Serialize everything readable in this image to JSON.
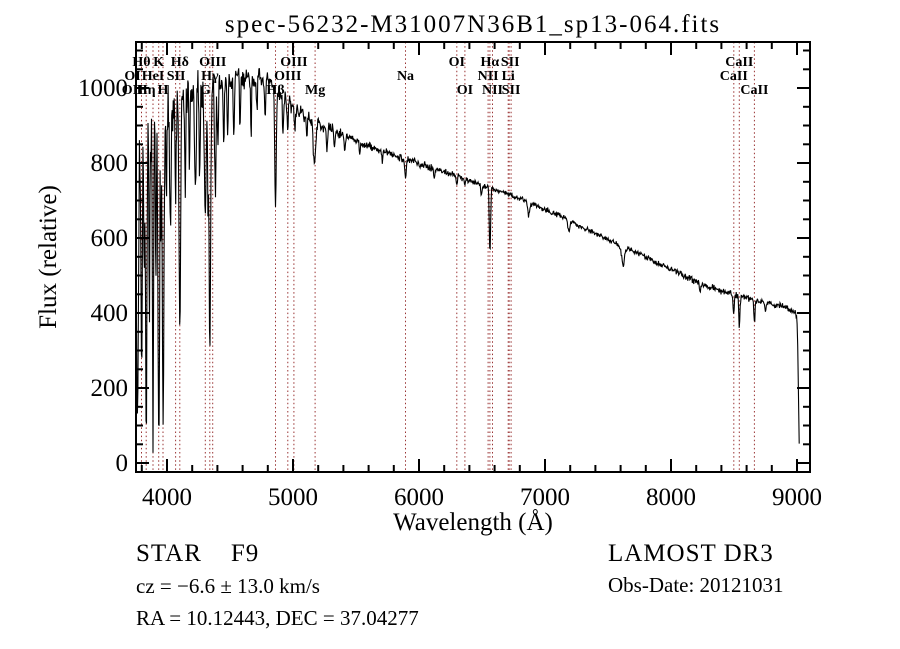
{
  "title": "spec-56232-M31007N36B1_sp13-064.fits",
  "footer": {
    "class_label": "STAR    F9",
    "cz": "cz = −6.6 ± 13.0 km/s",
    "radec": "RA =  10.12443, DEC =  37.04277",
    "survey": "LAMOST DR3",
    "obs_date": "Obs-Date: 20121031"
  },
  "chart_data": {
    "type": "line",
    "title": "spec-56232-M31007N36B1_sp13-064.fits",
    "xlabel": "Wavelength (Å)",
    "ylabel": "Flux (relative)",
    "x_ticks": [
      4000,
      5000,
      6000,
      7000,
      8000,
      9000
    ],
    "y_ticks": [
      0,
      200,
      400,
      600,
      800,
      1000
    ],
    "x_minor_step": 200,
    "y_minor_step": 50,
    "xlim": [
      3754,
      9103
    ],
    "ylim": [
      -24,
      1123
    ],
    "grid": false,
    "legend": "none",
    "line_color": "#000000",
    "marker_color": "#993333",
    "marker_lines": [
      3798,
      3835,
      3889,
      3934,
      3968,
      4068,
      4102,
      4304,
      4340,
      4363,
      4861,
      4959,
      5007,
      5175,
      5893,
      6300,
      6364,
      6548,
      6563,
      6583,
      6708,
      6716,
      6731,
      8498,
      8542,
      8662
    ],
    "marker_labels": [
      {
        "label": "Hθ",
        "wavelength": 3798,
        "row": 1
      },
      {
        "label": "K",
        "wavelength": 3934,
        "row": 1
      },
      {
        "label": "Hδ",
        "wavelength": 4102,
        "row": 1
      },
      {
        "label": "OIII",
        "wavelength": 4363,
        "row": 1
      },
      {
        "label": "OIII",
        "wavelength": 5007,
        "row": 1
      },
      {
        "label": "OI",
        "wavelength": 6300,
        "row": 1
      },
      {
        "label": "Hα",
        "wavelength": 6563,
        "row": 1
      },
      {
        "label": "SII",
        "wavelength": 6724,
        "row": 1
      },
      {
        "label": "CaII",
        "wavelength": 8542,
        "row": 1
      },
      {
        "label": "OI",
        "wavelength": 3727,
        "row": 2
      },
      {
        "label": "HeI",
        "wavelength": 3889,
        "row": 2
      },
      {
        "label": "SII",
        "wavelength": 4072,
        "row": 2
      },
      {
        "label": "Hγ",
        "wavelength": 4340,
        "row": 2
      },
      {
        "label": "OIII",
        "wavelength": 4959,
        "row": 2
      },
      {
        "label": "Na",
        "wavelength": 5893,
        "row": 2
      },
      {
        "label": "NII",
        "wavelength": 6548,
        "row": 2
      },
      {
        "label": "Li",
        "wavelength": 6708,
        "row": 2
      },
      {
        "label": "CaII",
        "wavelength": 8498,
        "row": 2
      },
      {
        "label": "OII",
        "wavelength": 3727,
        "row": 3
      },
      {
        "label": "Hη",
        "wavelength": 3835,
        "row": 3
      },
      {
        "label": "H",
        "wavelength": 3968,
        "row": 3
      },
      {
        "label": "G",
        "wavelength": 4304,
        "row": 3
      },
      {
        "label": "Hβ",
        "wavelength": 4861,
        "row": 3
      },
      {
        "label": "Mg",
        "wavelength": 5175,
        "row": 3
      },
      {
        "label": "OI",
        "wavelength": 6364,
        "row": 3
      },
      {
        "label": "NII",
        "wavelength": 6583,
        "row": 3
      },
      {
        "label": "SII",
        "wavelength": 6731,
        "row": 3
      },
      {
        "label": "CaII",
        "wavelength": 8662,
        "row": 3
      }
    ],
    "continuum_points": [
      [
        3754,
        830
      ],
      [
        3800,
        865
      ],
      [
        3900,
        895
      ],
      [
        4000,
        925
      ],
      [
        4150,
        965
      ],
      [
        4300,
        992
      ],
      [
        4450,
        1012
      ],
      [
        4600,
        1028
      ],
      [
        4700,
        1030
      ],
      [
        4800,
        1015
      ],
      [
        4900,
        985
      ],
      [
        5000,
        948
      ],
      [
        5100,
        925
      ],
      [
        5200,
        906
      ],
      [
        5350,
        882
      ],
      [
        5500,
        858
      ],
      [
        5700,
        832
      ],
      [
        5900,
        810
      ],
      [
        6100,
        788
      ],
      [
        6300,
        766
      ],
      [
        6500,
        741
      ],
      [
        6700,
        718
      ],
      [
        6900,
        692
      ],
      [
        7100,
        662
      ],
      [
        7300,
        628
      ],
      [
        7500,
        598
      ],
      [
        7610,
        574
      ],
      [
        7700,
        566
      ],
      [
        7900,
        532
      ],
      [
        8100,
        500
      ],
      [
        8300,
        470
      ],
      [
        8500,
        450
      ],
      [
        8700,
        433
      ],
      [
        8900,
        416
      ],
      [
        8990,
        402
      ],
      [
        9000,
        385
      ],
      [
        9006,
        300
      ],
      [
        9012,
        160
      ],
      [
        9018,
        30
      ]
    ],
    "absorption_dips": [
      [
        3762,
        700,
        4
      ],
      [
        3771,
        520,
        4
      ],
      [
        3798,
        600,
        5
      ],
      [
        3820,
        430,
        4
      ],
      [
        3835,
        760,
        5
      ],
      [
        3860,
        430,
        4
      ],
      [
        3889,
        820,
        5
      ],
      [
        3912,
        390,
        4
      ],
      [
        3934,
        850,
        6
      ],
      [
        3952,
        310,
        4
      ],
      [
        3969,
        870,
        6
      ],
      [
        3995,
        290,
        4
      ],
      [
        4026,
        260,
        4
      ],
      [
        4068,
        250,
        4
      ],
      [
        4102,
        620,
        6
      ],
      [
        4144,
        240,
        4
      ],
      [
        4178,
        180,
        4
      ],
      [
        4226,
        300,
        5
      ],
      [
        4260,
        210,
        4
      ],
      [
        4304,
        330,
        7
      ],
      [
        4325,
        260,
        4
      ],
      [
        4340,
        690,
        6
      ],
      [
        4383,
        290,
        5
      ],
      [
        4405,
        210,
        4
      ],
      [
        4450,
        170,
        4
      ],
      [
        4481,
        150,
        4
      ],
      [
        4530,
        150,
        4
      ],
      [
        4580,
        130,
        4
      ],
      [
        4668,
        140,
        4
      ],
      [
        4715,
        110,
        4
      ],
      [
        4780,
        110,
        4
      ],
      [
        4861,
        315,
        6
      ],
      [
        4920,
        95,
        4
      ],
      [
        4957,
        75,
        4
      ],
      [
        5015,
        65,
        4
      ],
      [
        5110,
        60,
        4
      ],
      [
        5170,
        120,
        9
      ],
      [
        5270,
        70,
        5
      ],
      [
        5330,
        45,
        4
      ],
      [
        5410,
        40,
        4
      ],
      [
        5530,
        35,
        4
      ],
      [
        5710,
        30,
        4
      ],
      [
        5893,
        52,
        6
      ],
      [
        6122,
        25,
        5
      ],
      [
        6300,
        30,
        4
      ],
      [
        6364,
        18,
        4
      ],
      [
        6495,
        28,
        4
      ],
      [
        6563,
        176,
        5
      ],
      [
        6870,
        35,
        8
      ],
      [
        7190,
        25,
        8
      ],
      [
        7620,
        46,
        10
      ],
      [
        8230,
        20,
        5
      ],
      [
        8498,
        55,
        5
      ],
      [
        8542,
        78,
        5
      ],
      [
        8662,
        62,
        5
      ],
      [
        8750,
        25,
        5
      ]
    ],
    "noise_segments": [
      [
        3754,
        4050,
        125
      ],
      [
        4050,
        4420,
        75
      ],
      [
        4420,
        4750,
        42
      ],
      [
        4750,
        5000,
        30
      ],
      [
        5000,
        5400,
        20
      ],
      [
        5400,
        6100,
        13
      ],
      [
        6100,
        7100,
        10
      ],
      [
        7100,
        8100,
        9
      ],
      [
        8100,
        9030,
        11
      ]
    ]
  }
}
